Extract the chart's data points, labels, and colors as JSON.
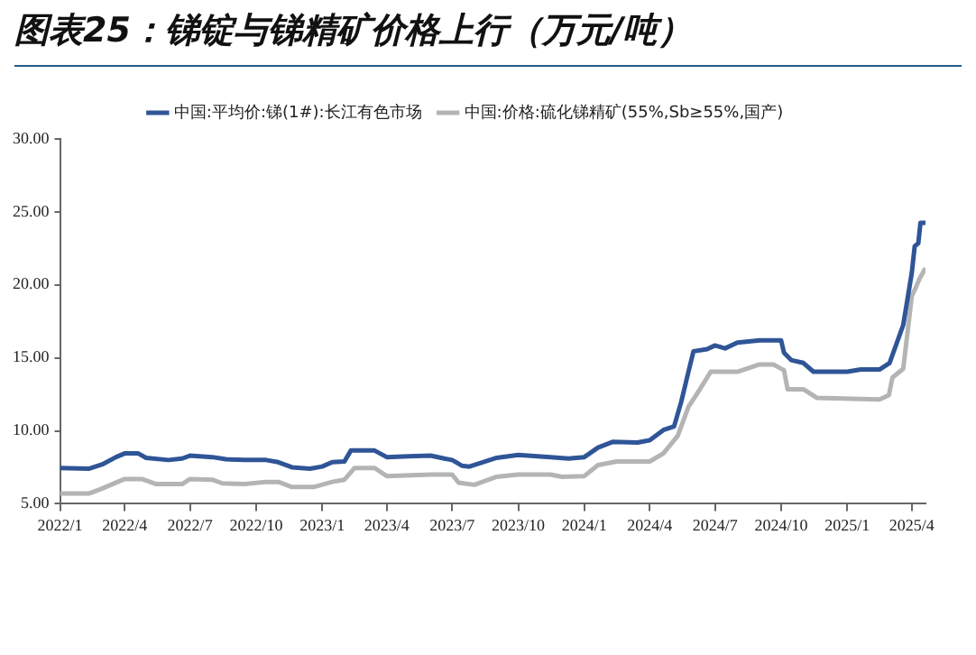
{
  "chart_data": {
    "type": "line",
    "title": "图表25：锑锭与锑精矿价格上行（万元/吨）",
    "xlim": [
      "2022-01-01",
      "2025-04-20"
    ],
    "xticks": [
      {
        "value": "2022-01-01",
        "label": "2022/1"
      },
      {
        "value": "2022-04-01",
        "label": "2022/4"
      },
      {
        "value": "2022-07-01",
        "label": "2022/7"
      },
      {
        "value": "2022-10-01",
        "label": "2022/10"
      },
      {
        "value": "2023-01-01",
        "label": "2023/1"
      },
      {
        "value": "2023-04-01",
        "label": "2023/4"
      },
      {
        "value": "2023-07-01",
        "label": "2023/7"
      },
      {
        "value": "2023-10-01",
        "label": "2023/10"
      },
      {
        "value": "2024-01-01",
        "label": "2024/1"
      },
      {
        "value": "2024-04-01",
        "label": "2024/4"
      },
      {
        "value": "2024-07-01",
        "label": "2024/7"
      },
      {
        "value": "2024-10-01",
        "label": "2024/10"
      },
      {
        "value": "2025-01-01",
        "label": "2025/1"
      },
      {
        "value": "2025-04-01",
        "label": "2025/4"
      }
    ],
    "ylim": [
      5,
      30
    ],
    "yticks": [
      {
        "value": 5,
        "label": "5.00"
      },
      {
        "value": 10,
        "label": "10.00"
      },
      {
        "value": 15,
        "label": "15.00"
      },
      {
        "value": 20,
        "label": "20.00"
      },
      {
        "value": 25,
        "label": "25.00"
      },
      {
        "value": 30,
        "label": "30.00"
      }
    ],
    "grid": false,
    "legend": "top",
    "marker": "none",
    "line_style": "solid",
    "series": [
      {
        "name": "中国:平均价:锑(1#):长江有色市场",
        "color": "#2f5597",
        "x": [
          "2022-01-01",
          "2022-02-10",
          "2022-03-01",
          "2022-03-20",
          "2022-04-01",
          "2022-04-20",
          "2022-05-01",
          "2022-06-01",
          "2022-06-20",
          "2022-07-01",
          "2022-08-01",
          "2022-08-20",
          "2022-09-15",
          "2022-10-15",
          "2022-11-01",
          "2022-11-20",
          "2022-12-15",
          "2023-01-01",
          "2023-01-15",
          "2023-02-01",
          "2023-02-10",
          "2023-03-15",
          "2023-04-01",
          "2023-05-01",
          "2023-06-01",
          "2023-06-20",
          "2023-07-01",
          "2023-07-15",
          "2023-07-25",
          "2023-09-01",
          "2023-10-01",
          "2023-11-15",
          "2023-12-10",
          "2024-01-01",
          "2024-01-20",
          "2024-02-10",
          "2024-03-15",
          "2024-04-01",
          "2024-04-20",
          "2024-05-05",
          "2024-05-15",
          "2024-05-25",
          "2024-06-01",
          "2024-06-20",
          "2024-07-01",
          "2024-07-15",
          "2024-08-01",
          "2024-09-01",
          "2024-10-01",
          "2024-10-05",
          "2024-10-15",
          "2024-11-01",
          "2024-11-15",
          "2025-01-01",
          "2025-01-20",
          "2025-02-15",
          "2025-03-01",
          "2025-03-20",
          "2025-04-01",
          "2025-04-05",
          "2025-04-10",
          "2025-04-13",
          "2025-04-20"
        ],
        "values": [
          7.45,
          7.4,
          7.7,
          8.2,
          8.45,
          8.45,
          8.15,
          8.0,
          8.1,
          8.3,
          8.2,
          8.05,
          8.0,
          8.0,
          7.85,
          7.5,
          7.4,
          7.55,
          7.85,
          7.9,
          8.65,
          8.65,
          8.2,
          8.25,
          8.3,
          8.1,
          8.0,
          7.6,
          7.55,
          8.15,
          8.35,
          8.2,
          8.1,
          8.2,
          8.85,
          9.25,
          9.2,
          9.35,
          10.05,
          10.3,
          12.0,
          14.05,
          15.45,
          15.6,
          15.85,
          15.65,
          16.05,
          16.2,
          16.2,
          15.35,
          14.85,
          14.65,
          14.05,
          14.05,
          14.2,
          14.2,
          14.65,
          17.25,
          20.85,
          22.65,
          22.85,
          24.25,
          24.25
        ]
      },
      {
        "name": "中国:价格:硫化锑精矿(55%,Sb≥55%,国产)",
        "color": "#b4b4b4",
        "x": [
          "2022-01-01",
          "2022-02-10",
          "2022-03-01",
          "2022-04-01",
          "2022-04-25",
          "2022-05-15",
          "2022-06-20",
          "2022-07-01",
          "2022-08-01",
          "2022-08-15",
          "2022-09-15",
          "2022-10-15",
          "2022-11-01",
          "2022-11-20",
          "2022-12-20",
          "2023-01-15",
          "2023-02-01",
          "2023-02-15",
          "2023-03-15",
          "2023-04-01",
          "2023-06-01",
          "2023-07-01",
          "2023-07-10",
          "2023-08-01",
          "2023-09-01",
          "2023-10-01",
          "2023-11-15",
          "2023-12-01",
          "2024-01-01",
          "2024-01-20",
          "2024-02-15",
          "2024-04-01",
          "2024-04-20",
          "2024-05-10",
          "2024-05-25",
          "2024-06-10",
          "2024-06-25",
          "2024-08-01",
          "2024-09-01",
          "2024-09-20",
          "2024-10-05",
          "2024-10-10",
          "2024-11-01",
          "2024-11-20",
          "2025-02-15",
          "2025-02-28",
          "2025-03-05",
          "2025-03-20",
          "2025-04-01",
          "2025-04-05",
          "2025-04-12",
          "2025-04-20"
        ],
        "values": [
          5.7,
          5.7,
          6.05,
          6.7,
          6.7,
          6.35,
          6.35,
          6.7,
          6.65,
          6.4,
          6.35,
          6.5,
          6.5,
          6.15,
          6.15,
          6.5,
          6.65,
          7.45,
          7.45,
          6.9,
          7.0,
          7.0,
          6.45,
          6.3,
          6.85,
          7.0,
          7.0,
          6.85,
          6.9,
          7.65,
          7.9,
          7.9,
          8.45,
          9.65,
          11.65,
          12.85,
          14.05,
          14.05,
          14.55,
          14.55,
          14.15,
          12.85,
          12.85,
          12.25,
          12.15,
          12.45,
          13.65,
          14.25,
          19.25,
          19.65,
          20.45,
          21.15
        ]
      }
    ]
  }
}
